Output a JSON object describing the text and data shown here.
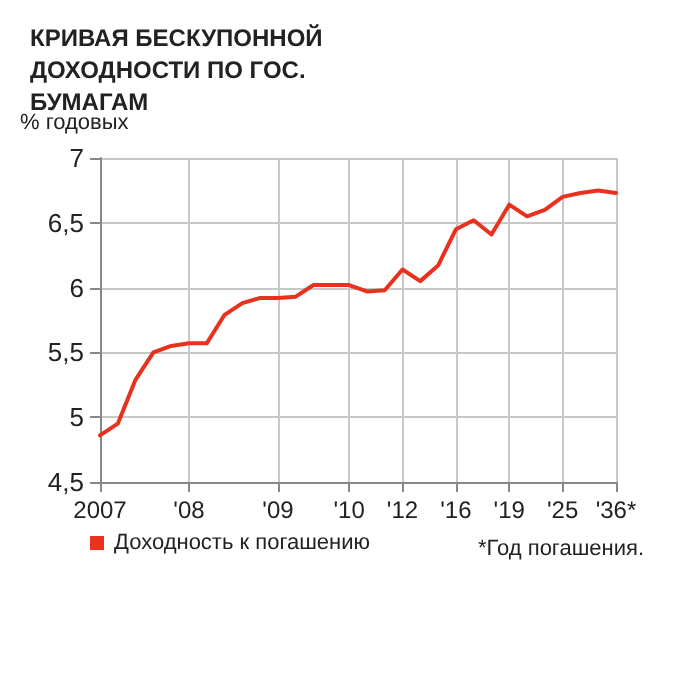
{
  "chart_data": {
    "type": "line",
    "title": "КРИВАЯ БЕСКУПОННОЙ ДОХОДНОСТИ ПО ГОС. БУМАГАМ",
    "ylabel": "% годовых",
    "categories": [
      "2007",
      null,
      null,
      null,
      null,
      "'08",
      null,
      null,
      null,
      null,
      "'09",
      null,
      null,
      null,
      "'10",
      null,
      null,
      "'12",
      null,
      null,
      "'16",
      null,
      null,
      "'19",
      null,
      null,
      "'25",
      null,
      null,
      "'36*"
    ],
    "series": [
      {
        "name": "Доходность к погашению",
        "color": "#e8321e",
        "values": [
          4.86,
          4.95,
          5.29,
          5.5,
          5.55,
          5.57,
          5.57,
          5.79,
          5.88,
          5.92,
          5.92,
          5.93,
          6.02,
          6.02,
          6.02,
          5.97,
          5.98,
          6.14,
          6.05,
          6.17,
          6.45,
          6.52,
          6.41,
          6.64,
          6.55,
          6.6,
          6.7,
          6.73,
          6.75,
          6.73
        ]
      }
    ],
    "ylim": [
      4.5,
      7
    ],
    "yticks": [
      {
        "value": 4.5,
        "label": "4,5"
      },
      5,
      {
        "value": 5.5,
        "label": "5,5"
      },
      6,
      {
        "value": 6.5,
        "label": "6,5"
      },
      7
    ],
    "grid": true,
    "legend": "bottom left",
    "marker": "none",
    "line_style": "solid",
    "annotations": [
      "*Год погашения."
    ]
  }
}
